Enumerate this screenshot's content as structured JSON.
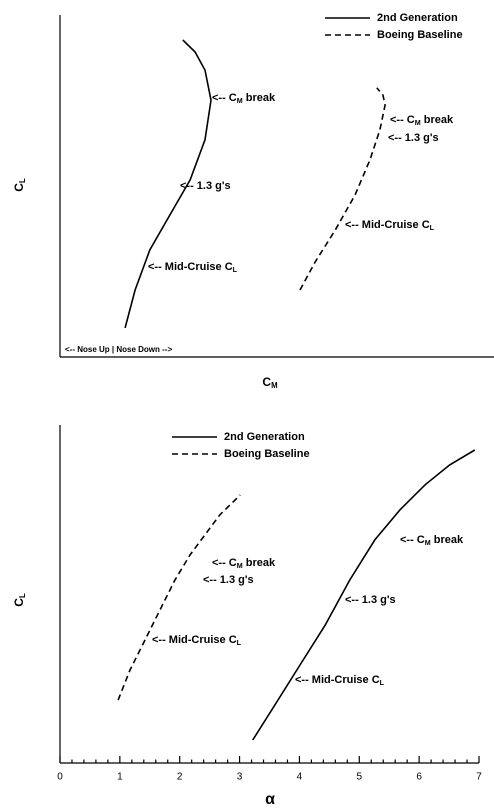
{
  "chart_data": [
    {
      "type": "line",
      "x_label": {
        "text": "C",
        "subscript": "M"
      },
      "y_label": {
        "text": "C",
        "subscript": "L"
      },
      "xlim": [
        0,
        1
      ],
      "ylim": [
        0,
        1
      ],
      "legend": "upper right",
      "series": [
        {
          "name": "2nd Generation",
          "color": "#000000",
          "dash": "solid",
          "x": [
            0.15,
            0.173,
            0.207,
            0.253,
            0.3,
            0.334,
            0.348,
            0.334,
            0.311,
            0.283
          ],
          "values": [
            0.085,
            0.196,
            0.313,
            0.415,
            0.518,
            0.635,
            0.751,
            0.839,
            0.892,
            0.927
          ]
        },
        {
          "name": "Boeing Baseline",
          "color": "#000000",
          "dash": "dashed",
          "x": [
            0.553,
            0.588,
            0.634,
            0.68,
            0.714,
            0.737,
            0.749,
            0.744,
            0.73
          ],
          "values": [
            0.196,
            0.278,
            0.371,
            0.474,
            0.576,
            0.664,
            0.737,
            0.766,
            0.787
          ]
        }
      ],
      "annotations": [
        {
          "prefix": "<-- C",
          "subscript": "M",
          "suffix": " break"
        },
        {
          "prefix": "<-- 1.3 g's"
        },
        {
          "prefix": "<-- Mid-Cruise C",
          "subscript": "L"
        },
        {
          "prefix": "<-- C",
          "subscript": "M",
          "suffix": " break"
        },
        {
          "prefix": "<-- 1.3 g's"
        },
        {
          "prefix": "<-- Mid-Cruise C",
          "subscript": "L"
        },
        {
          "prefix": "<-- Nose Up  |  Nose Down -->"
        }
      ]
    },
    {
      "type": "line",
      "x_label": {
        "text": "α"
      },
      "y_label": {
        "text": "C",
        "subscript": "L"
      },
      "xlim": [
        0,
        7
      ],
      "ylim": [
        0,
        1
      ],
      "xticks": [
        0,
        1,
        2,
        3,
        4,
        5,
        6,
        7
      ],
      "xminorticks": [
        0.2,
        0.4,
        0.6,
        0.8,
        1.2,
        1.4,
        1.6,
        1.8,
        2.2,
        2.4,
        2.6,
        2.8,
        3.2,
        3.4,
        3.6,
        3.8,
        4.2,
        4.4,
        4.6,
        4.8,
        5.2,
        5.4,
        5.6,
        5.8,
        6.2,
        6.4,
        6.6,
        6.8
      ],
      "legend": "upper left",
      "series": [
        {
          "name": "2nd Generation",
          "color": "#000000",
          "dash": "solid",
          "x": [
            3.22,
            3.59,
            4.01,
            4.43,
            4.84,
            5.26,
            5.68,
            6.1,
            6.51,
            6.93
          ],
          "values": [
            0.068,
            0.172,
            0.29,
            0.408,
            0.541,
            0.66,
            0.749,
            0.823,
            0.882,
            0.926
          ]
        },
        {
          "name": "Boeing Baseline",
          "color": "#000000",
          "dash": "dashed",
          "x": [
            0.97,
            1.17,
            1.42,
            1.67,
            1.92,
            2.17,
            2.42,
            2.67,
            3.01
          ],
          "values": [
            0.186,
            0.275,
            0.364,
            0.453,
            0.541,
            0.615,
            0.675,
            0.734,
            0.793
          ]
        }
      ],
      "annotations": [
        {
          "prefix": "<-- C",
          "subscript": "M",
          "suffix": " break"
        },
        {
          "prefix": "<-- 1.3 g's"
        },
        {
          "prefix": "<-- Mid-Cruise C",
          "subscript": "L"
        },
        {
          "prefix": "<-- C",
          "subscript": "M",
          "suffix": " break"
        },
        {
          "prefix": "<-- 1.3 g's"
        },
        {
          "prefix": "<-- Mid-Cruise C",
          "subscript": "L"
        }
      ]
    }
  ]
}
